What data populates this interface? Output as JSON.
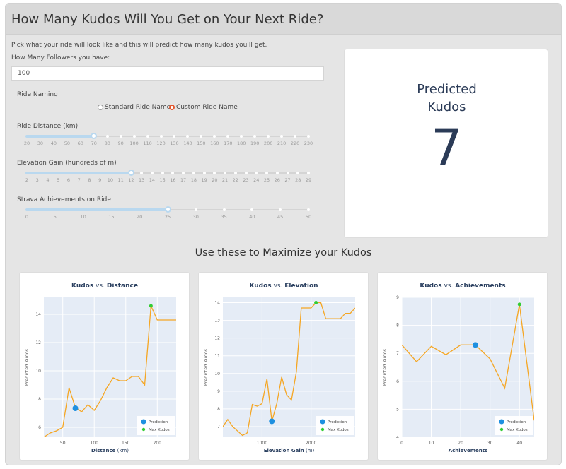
{
  "header": {
    "title": "How Many Kudos Will You Get on Your Next Ride?"
  },
  "intro": "Pick what your ride will look like and this will predict how many kudos you'll get.",
  "followers": {
    "label": "How Many Followers you have:",
    "value": "100"
  },
  "naming": {
    "label": "Ride Naming",
    "options": [
      "Standard Ride Name",
      "Custom Ride Name"
    ],
    "selected": "Custom Ride Name"
  },
  "sliders": [
    {
      "label": "Ride Distance (km)",
      "marks": [
        "20",
        "30",
        "40",
        "50",
        "60",
        "70",
        "80",
        "90",
        "100",
        "110",
        "120",
        "130",
        "140",
        "150",
        "160",
        "170",
        "180",
        "190",
        "200",
        "210",
        "220",
        "230"
      ],
      "value": "70"
    },
    {
      "label": "Elevation Gain (hundreds of m)",
      "marks": [
        "2",
        "3",
        "4",
        "5",
        "6",
        "7",
        "8",
        "9",
        "10",
        "11",
        "12",
        "13",
        "14",
        "15",
        "16",
        "17",
        "18",
        "19",
        "20",
        "21",
        "22",
        "23",
        "24",
        "25",
        "26",
        "27",
        "28",
        "29"
      ],
      "value": "12"
    },
    {
      "label": "Strava Achievements on Ride",
      "marks": [
        "0",
        "5",
        "10",
        "15",
        "20",
        "25",
        "30",
        "35",
        "40",
        "45",
        "50"
      ],
      "value": "25"
    }
  ],
  "prediction": {
    "label_line1": "Predicted",
    "label_line2": "Kudos",
    "value": "7"
  },
  "section_title": "Use these to Maximize your Kudos",
  "legend": {
    "prediction": "Prediction",
    "max": "Max Kudos"
  },
  "colors": {
    "line": "#f5a623",
    "prediction": "#1e90e0",
    "max": "#33cc33",
    "plot_bg": "#e5ecf6"
  },
  "chart_data": [
    {
      "type": "line",
      "title_a": "Kudos",
      "title_b": " vs. ",
      "title_c": "Distance",
      "xlabel_a": "Distance",
      "xlabel_b": " (km)",
      "ylabel": "Predicted Kudos",
      "xlim": [
        20,
        230
      ],
      "ylim": [
        5.3,
        15.2
      ],
      "xticks": [
        50,
        100,
        150,
        200
      ],
      "yticks": [
        6,
        8,
        10,
        12,
        14
      ],
      "x": [
        20,
        30,
        40,
        50,
        60,
        70,
        80,
        90,
        100,
        110,
        120,
        130,
        140,
        150,
        160,
        170,
        180,
        190,
        200,
        210,
        220,
        230
      ],
      "y": [
        5.3,
        5.6,
        5.75,
        6.0,
        8.8,
        7.4,
        7.1,
        7.6,
        7.2,
        7.9,
        8.8,
        9.5,
        9.3,
        9.3,
        9.6,
        9.6,
        9.0,
        14.6,
        13.6,
        13.6,
        13.6,
        13.6
      ],
      "prediction": [
        70,
        7.35
      ],
      "max": [
        190,
        14.6
      ]
    },
    {
      "type": "line",
      "title_a": "Kudos",
      "title_b": " vs. ",
      "title_c": "Elevation",
      "xlabel_a": "Elevation Gain",
      "xlabel_b": " (m)",
      "ylabel": "Predicted Kudos",
      "xlim": [
        200,
        2900
      ],
      "ylim": [
        6.4,
        14.3
      ],
      "xticks": [
        1000,
        2000
      ],
      "yticks": [
        7,
        8,
        9,
        10,
        11,
        12,
        13,
        14
      ],
      "x": [
        200,
        300,
        400,
        500,
        600,
        700,
        800,
        900,
        1000,
        1100,
        1200,
        1300,
        1400,
        1500,
        1600,
        1700,
        1800,
        1900,
        2000,
        2100,
        2200,
        2300,
        2400,
        2500,
        2600,
        2700,
        2800,
        2900
      ],
      "y": [
        7.0,
        7.4,
        7.0,
        6.75,
        6.5,
        6.65,
        8.25,
        8.15,
        8.3,
        9.7,
        7.3,
        8.3,
        9.8,
        8.8,
        8.5,
        10.1,
        13.7,
        13.7,
        13.7,
        14.0,
        14.0,
        13.1,
        13.1,
        13.1,
        13.1,
        13.4,
        13.4,
        13.7
      ],
      "prediction": [
        1200,
        7.3
      ],
      "max": [
        2100,
        14.0
      ]
    },
    {
      "type": "line",
      "title_a": "Kudos",
      "title_b": " vs. ",
      "title_c": "Achievements",
      "xlabel_a": "Achievements",
      "xlabel_b": "",
      "ylabel": "Predicted Kudos",
      "xlim": [
        0,
        45
      ],
      "ylim": [
        4.0,
        9.0
      ],
      "xticks": [
        0,
        10,
        20,
        30,
        40
      ],
      "yticks": [
        4,
        5,
        6,
        7,
        8,
        9
      ],
      "x": [
        0,
        5,
        10,
        15,
        20,
        25,
        30,
        35,
        40,
        45
      ],
      "y": [
        7.3,
        6.7,
        7.25,
        6.95,
        7.3,
        7.3,
        6.8,
        5.75,
        8.75,
        4.6
      ],
      "prediction": [
        25,
        7.3
      ],
      "max": [
        40,
        8.75
      ]
    }
  ]
}
